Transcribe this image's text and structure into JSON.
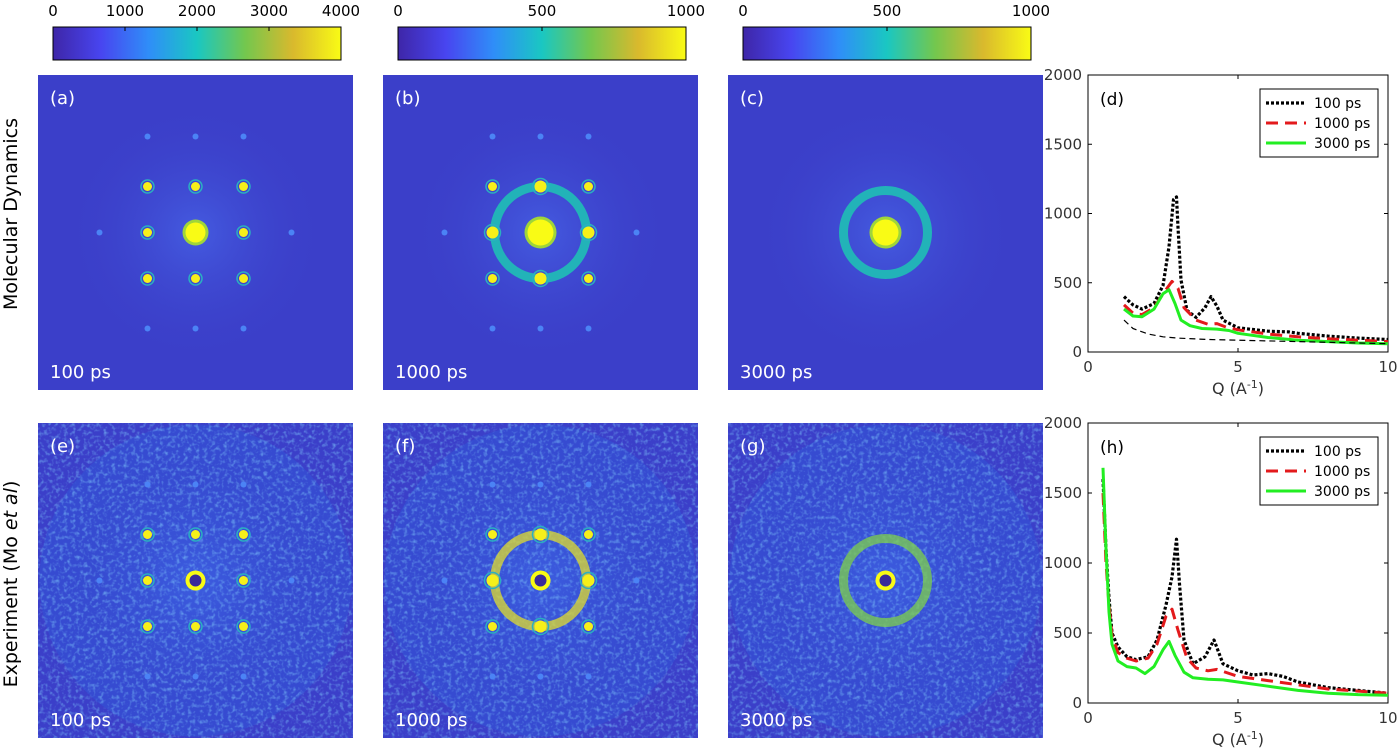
{
  "row_labels": {
    "top": "Molecular Dynamics",
    "bottom_prefix": "Experiment (Mo ",
    "bottom_italic": "et al",
    "bottom_suffix": ")"
  },
  "colorbars": [
    {
      "ticks": [
        "0",
        "1000",
        "2000",
        "3000",
        "4000"
      ],
      "range": [
        0,
        4000
      ]
    },
    {
      "ticks": [
        "0",
        "500",
        "1000"
      ],
      "range": [
        0,
        1000
      ]
    },
    {
      "ticks": [
        "0",
        "500",
        "1000"
      ],
      "range": [
        0,
        1000
      ]
    }
  ],
  "panels": [
    {
      "id": "a",
      "label": "(a)",
      "time": "100 ps",
      "source": "md",
      "pattern": "bragg"
    },
    {
      "id": "b",
      "label": "(b)",
      "time": "1000 ps",
      "source": "md",
      "pattern": "mixed"
    },
    {
      "id": "c",
      "label": "(c)",
      "time": "3000 ps",
      "source": "md",
      "pattern": "ring"
    },
    {
      "id": "e",
      "label": "(e)",
      "time": "100 ps",
      "source": "experiment",
      "pattern": "bragg"
    },
    {
      "id": "f",
      "label": "(f)",
      "time": "1000 ps",
      "source": "experiment",
      "pattern": "mixed"
    },
    {
      "id": "g",
      "label": "(g)",
      "time": "3000 ps",
      "source": "experiment",
      "pattern": "ring"
    }
  ],
  "colors": {
    "background": "#3b3fc9",
    "colormap": [
      "#3e26a8",
      "#4845f0",
      "#2f8ef8",
      "#1ac7c2",
      "#73c74e",
      "#d9b92d",
      "#f9fb15"
    ],
    "series_100ps": "#000000",
    "series_1000ps": "#e31a1c",
    "series_3000ps": "#22ee22"
  },
  "chart_data": [
    {
      "type": "line",
      "label": "(d)",
      "xlabel": "Q (A",
      "xlabel_sup": "-1",
      "xlabel_close": ")",
      "xlim": [
        0,
        10
      ],
      "ylim": [
        0,
        2000
      ],
      "xticks": [
        0,
        5,
        10
      ],
      "yticks": [
        0,
        500,
        1000,
        1500,
        2000
      ],
      "legend_position": "top-right",
      "series": [
        {
          "name": "100 ps",
          "style": "dotted",
          "color": "#000000",
          "x": [
            1.2,
            1.5,
            1.8,
            2.2,
            2.5,
            2.7,
            2.85,
            2.95,
            3.0,
            3.1,
            3.3,
            3.6,
            3.9,
            4.1,
            4.3,
            4.5,
            5.0,
            6.0,
            6.7,
            7.0,
            8.0,
            9.0,
            10.0
          ],
          "y": [
            400,
            340,
            310,
            350,
            480,
            760,
            1100,
            1120,
            900,
            520,
            300,
            250,
            320,
            400,
            330,
            230,
            175,
            150,
            145,
            135,
            115,
            100,
            90
          ]
        },
        {
          "name": "1000 ps",
          "style": "dashed",
          "color": "#e31a1c",
          "x": [
            1.2,
            1.5,
            1.8,
            2.2,
            2.5,
            2.8,
            3.0,
            3.2,
            3.6,
            4.0,
            4.3,
            4.6,
            5.0,
            6.0,
            7.0,
            8.0,
            9.0,
            10.0
          ],
          "y": [
            340,
            280,
            270,
            320,
            420,
            510,
            460,
            320,
            230,
            200,
            205,
            180,
            160,
            130,
            110,
            95,
            85,
            75
          ]
        },
        {
          "name": "3000 ps",
          "style": "solid",
          "color": "#22ee22",
          "x": [
            1.2,
            1.5,
            1.8,
            2.2,
            2.5,
            2.7,
            2.9,
            3.1,
            3.4,
            3.8,
            4.3,
            4.7,
            5.0,
            6.0,
            7.0,
            8.0,
            9.0,
            10.0
          ],
          "y": [
            310,
            260,
            255,
            310,
            420,
            450,
            350,
            230,
            190,
            170,
            165,
            155,
            135,
            105,
            85,
            75,
            65,
            60
          ]
        },
        {
          "name": "",
          "style": "thin-dashed",
          "color": "#000000",
          "x": [
            1.2,
            1.5,
            2.0,
            2.5,
            3.0,
            4.0,
            5.0,
            6.0,
            7.0,
            8.0,
            9.0,
            10.0
          ],
          "y": [
            230,
            170,
            130,
            110,
            100,
            90,
            85,
            80,
            75,
            70,
            65,
            60
          ]
        }
      ]
    },
    {
      "type": "line",
      "label": "(h)",
      "xlabel": "Q (A",
      "xlabel_sup": "-1",
      "xlabel_close": ")",
      "xlim": [
        0,
        10
      ],
      "ylim": [
        0,
        2000
      ],
      "xticks": [
        0,
        5,
        10
      ],
      "yticks": [
        0,
        500,
        1000,
        1500,
        2000
      ],
      "legend_position": "top-right",
      "series": [
        {
          "name": "100 ps",
          "style": "dotted",
          "color": "#000000",
          "x": [
            0.5,
            0.6,
            0.7,
            0.8,
            1.0,
            1.3,
            1.6,
            2.0,
            2.3,
            2.6,
            2.8,
            2.95,
            3.05,
            3.2,
            3.5,
            3.9,
            4.2,
            4.5,
            5.0,
            5.5,
            6.0,
            6.5,
            7.0,
            8.0,
            9.0,
            10.0
          ],
          "y": [
            1600,
            1100,
            750,
            500,
            400,
            330,
            310,
            330,
            450,
            700,
            900,
            1170,
            850,
            450,
            280,
            330,
            450,
            280,
            230,
            200,
            210,
            190,
            150,
            110,
            90,
            70
          ]
        },
        {
          "name": "1000 ps",
          "style": "dashed",
          "color": "#e31a1c",
          "x": [
            0.5,
            0.6,
            0.7,
            0.8,
            1.0,
            1.3,
            1.6,
            2.0,
            2.3,
            2.6,
            2.8,
            3.0,
            3.3,
            3.6,
            4.0,
            4.3,
            5.0,
            6.0,
            7.0,
            8.0,
            9.0,
            10.0
          ],
          "y": [
            1500,
            1000,
            700,
            480,
            360,
            320,
            300,
            320,
            420,
            620,
            670,
            520,
            320,
            250,
            230,
            240,
            190,
            160,
            130,
            100,
            85,
            70
          ]
        },
        {
          "name": "3000 ps",
          "style": "solid",
          "color": "#22ee22",
          "x": [
            0.5,
            0.6,
            0.7,
            0.8,
            1.0,
            1.3,
            1.6,
            1.9,
            2.2,
            2.5,
            2.7,
            2.9,
            3.2,
            3.5,
            4.0,
            4.5,
            5.0,
            6.0,
            7.0,
            8.0,
            9.0,
            10.0
          ],
          "y": [
            1680,
            1100,
            650,
            420,
            300,
            260,
            250,
            210,
            260,
            380,
            440,
            340,
            220,
            180,
            170,
            165,
            150,
            120,
            90,
            70,
            60,
            55
          ]
        }
      ]
    }
  ]
}
